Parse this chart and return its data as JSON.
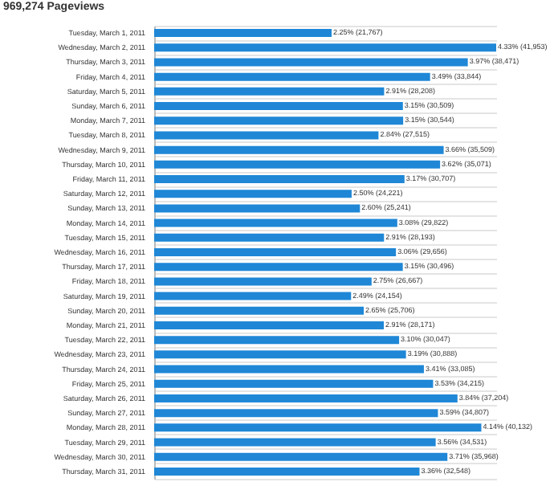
{
  "chart_data": {
    "type": "bar",
    "orientation": "horizontal",
    "title": "969,274 Pageviews",
    "categories": [
      "Tuesday, March 1, 2011",
      "Wednesday, March 2, 2011",
      "Thursday, March 3, 2011",
      "Friday, March 4, 2011",
      "Saturday, March 5, 2011",
      "Sunday, March 6, 2011",
      "Monday, March 7, 2011",
      "Tuesday, March 8, 2011",
      "Wednesday, March 9, 2011",
      "Thursday, March 10, 2011",
      "Friday, March 11, 2011",
      "Saturday, March 12, 2011",
      "Sunday, March 13, 2011",
      "Monday, March 14, 2011",
      "Tuesday, March 15, 2011",
      "Wednesday, March 16, 2011",
      "Thursday, March 17, 2011",
      "Friday, March 18, 2011",
      "Saturday, March 19, 2011",
      "Sunday, March 20, 2011",
      "Monday, March 21, 2011",
      "Tuesday, March 22, 2011",
      "Wednesday, March 23, 2011",
      "Thursday, March 24, 2011",
      "Friday, March 25, 2011",
      "Saturday, March 26, 2011",
      "Sunday, March 27, 2011",
      "Monday, March 28, 2011",
      "Tuesday, March 29, 2011",
      "Wednesday, March 30, 2011",
      "Thursday, March 31, 2011"
    ],
    "values": [
      21767,
      41953,
      38471,
      33844,
      28208,
      30509,
      30544,
      27515,
      35509,
      35071,
      30707,
      24221,
      25241,
      29822,
      28193,
      29656,
      30496,
      26667,
      24154,
      25706,
      28171,
      30047,
      30888,
      33085,
      34215,
      37204,
      34807,
      40132,
      34531,
      35968,
      32548
    ],
    "value_labels": [
      "2.25% (21,767)",
      "4.33% (41,953)",
      "3.97% (38,471)",
      "3.49% (33,844)",
      "2.91% (28,208)",
      "3.15% (30,509)",
      "3.15% (30,544)",
      "2.84% (27,515)",
      "3.66% (35,509)",
      "3.62% (35,071)",
      "3.17% (30,707)",
      "2.50% (24,221)",
      "2.60% (25,241)",
      "3.08% (29,822)",
      "2.91% (28,193)",
      "3.06% (29,656)",
      "3.15% (30,496)",
      "2.75% (26,667)",
      "2.49% (24,154)",
      "2.65% (25,706)",
      "2.91% (28,171)",
      "3.10% (30,047)",
      "3.19% (30,888)",
      "3.41% (33,085)",
      "3.53% (34,215)",
      "3.84% (37,204)",
      "3.59% (34,807)",
      "4.14% (40,132)",
      "3.56% (34,531)",
      "3.71% (35,968)",
      "3.36% (32,548)"
    ],
    "color": "#1f87d6",
    "grid": "y",
    "tick_labels": "y"
  }
}
